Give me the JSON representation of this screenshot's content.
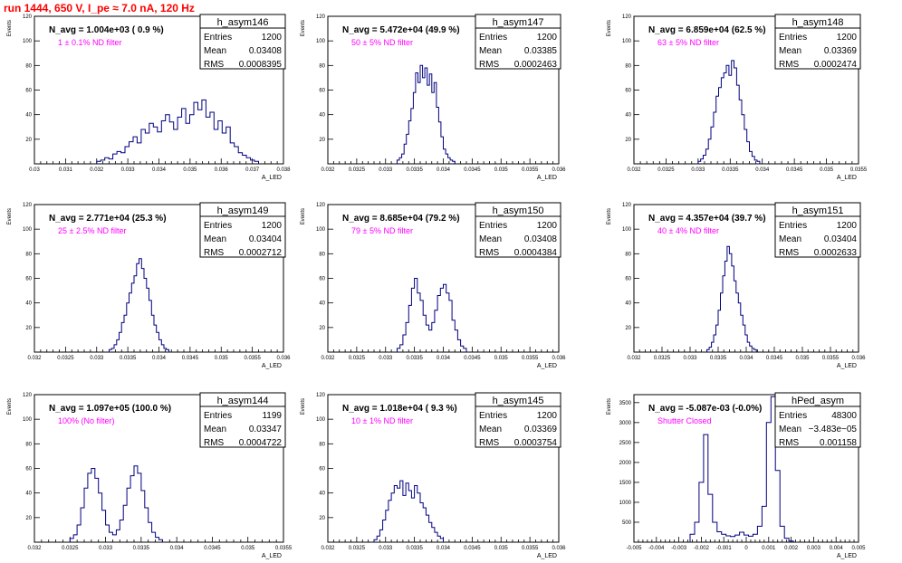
{
  "page": {
    "title": "run 1444,   650 V, I_pe ≈ 7.0 nA, 120 Hz"
  },
  "chart_data": [
    {
      "type": "bar",
      "title": "h_asym146",
      "entries": "1200",
      "mean": "0.03408",
      "rms": "0.0008395",
      "navg_label": "N_avg = 1.004e+03 ( 0.9 %)",
      "filter_label": "1 ± 0.1% ND filter",
      "xlabel": "A_LED",
      "ylabel": "Events",
      "xlim": [
        0.03,
        0.038
      ],
      "ylim": [
        0,
        120
      ],
      "xticks": [
        "0.03",
        "0.031",
        "0.032",
        "0.033",
        "0.034",
        "0.035",
        "0.036",
        "0.037",
        "0.038"
      ],
      "yticks": [
        "20",
        "40",
        "60",
        "80",
        "100",
        "120"
      ],
      "bins": {
        "x0": 0.032,
        "width": 0.00013,
        "values": [
          2,
          3,
          5,
          4,
          8,
          10,
          9,
          14,
          18,
          22,
          17,
          28,
          25,
          33,
          30,
          26,
          35,
          40,
          34,
          28,
          38,
          45,
          33,
          40,
          50,
          44,
          52,
          38,
          42,
          28,
          35,
          25,
          30,
          17,
          14,
          9,
          7,
          5,
          3,
          2
        ]
      }
    },
    {
      "type": "bar",
      "title": "h_asym147",
      "entries": "1200",
      "mean": "0.03385",
      "rms": "0.0002463",
      "navg_label": "N_avg = 5.472e+04 (49.9 %)",
      "filter_label": "50 ± 5% ND filter",
      "xlabel": "A_LED",
      "ylabel": "Events",
      "xlim": [
        0.032,
        0.036
      ],
      "ylim": [
        0,
        120
      ],
      "xticks": [
        "0.032",
        "0.0325",
        "0.033",
        "0.0335",
        "0.034",
        "0.0345",
        "0.035",
        "0.0355",
        "0.036"
      ],
      "yticks": [
        "20",
        "40",
        "60",
        "80",
        "100",
        "120"
      ],
      "bins": {
        "x0": 0.0332,
        "width": 4e-05,
        "values": [
          3,
          5,
          8,
          16,
          24,
          35,
          45,
          58,
          74,
          66,
          80,
          70,
          78,
          64,
          73,
          58,
          66,
          46,
          34,
          22,
          12,
          8,
          5,
          3,
          2
        ]
      }
    },
    {
      "type": "bar",
      "title": "h_asym148",
      "entries": "1200",
      "mean": "0.03369",
      "rms": "0.0002474",
      "navg_label": "N_avg = 6.859e+04 (62.5 %)",
      "filter_label": "63 ± 5% ND filter",
      "xlabel": "A_LED",
      "ylabel": "Events",
      "xlim": [
        0.032,
        0.0355
      ],
      "ylim": [
        0,
        120
      ],
      "xticks": [
        "0.032",
        "0.0325",
        "0.033",
        "0.0335",
        "0.034",
        "0.0345",
        "0.035",
        "0.0355"
      ],
      "yticks": [
        "20",
        "40",
        "60",
        "80",
        "100",
        "120"
      ],
      "bins": {
        "x0": 0.033,
        "width": 4e-05,
        "values": [
          2,
          4,
          7,
          12,
          20,
          30,
          42,
          55,
          62,
          70,
          74,
          80,
          72,
          84,
          78,
          64,
          52,
          40,
          28,
          18,
          10,
          6,
          3,
          2
        ]
      }
    },
    {
      "type": "bar",
      "title": "h_asym149",
      "entries": "1200",
      "mean": "0.03404",
      "rms": "0.0002712",
      "navg_label": "N_avg = 2.771e+04 (25.3 %)",
      "filter_label": "25 ± 2.5% ND filter",
      "xlabel": "A_LED",
      "ylabel": "Events",
      "xlim": [
        0.032,
        0.036
      ],
      "ylim": [
        0,
        120
      ],
      "xticks": [
        "0.032",
        "0.0325",
        "0.033",
        "0.0335",
        "0.034",
        "0.0345",
        "0.035",
        "0.0355",
        "0.036"
      ],
      "yticks": [
        "20",
        "40",
        "60",
        "80",
        "100",
        "120"
      ],
      "bins": {
        "x0": 0.0332,
        "width": 4e-05,
        "values": [
          2,
          3,
          6,
          10,
          16,
          24,
          30,
          40,
          48,
          56,
          62,
          72,
          76,
          68,
          60,
          52,
          42,
          30,
          22,
          16,
          10,
          6,
          3,
          2
        ]
      }
    },
    {
      "type": "bar",
      "title": "h_asym150",
      "entries": "1200",
      "mean": "0.03408",
      "rms": "0.0004384",
      "navg_label": "N_avg = 8.685e+04 (79.2 %)",
      "filter_label": "79 ± 5% ND filter",
      "xlabel": "A_LED",
      "ylabel": "Events",
      "xlim": [
        0.032,
        0.036
      ],
      "ylim": [
        0,
        120
      ],
      "xticks": [
        "0.032",
        "0.0325",
        "0.033",
        "0.0335",
        "0.034",
        "0.0345",
        "0.035",
        "0.0355",
        "0.036"
      ],
      "yticks": [
        "20",
        "40",
        "60",
        "80",
        "100",
        "120"
      ],
      "bins": {
        "x0": 0.0332,
        "width": 5e-05,
        "values": [
          3,
          6,
          14,
          24,
          38,
          52,
          60,
          48,
          42,
          30,
          22,
          18,
          24,
          34,
          46,
          52,
          55,
          48,
          42,
          26,
          18,
          10,
          5,
          3
        ]
      }
    },
    {
      "type": "bar",
      "title": "h_asym151",
      "entries": "1200",
      "mean": "0.03404",
      "rms": "0.0002633",
      "navg_label": "N_avg = 4.357e+04 (39.7 %)",
      "filter_label": "40 ± 4% ND filter",
      "xlabel": "A_LED",
      "ylabel": "Events",
      "xlim": [
        0.032,
        0.036
      ],
      "ylim": [
        0,
        120
      ],
      "xticks": [
        "0.032",
        "0.0325",
        "0.033",
        "0.0335",
        "0.034",
        "0.0345",
        "0.035",
        "0.0355",
        "0.036"
      ],
      "yticks": [
        "20",
        "40",
        "60",
        "80",
        "100",
        "120"
      ],
      "bins": {
        "x0": 0.0333,
        "width": 4e-05,
        "values": [
          2,
          4,
          8,
          14,
          22,
          34,
          48,
          62,
          74,
          86,
          80,
          70,
          58,
          48,
          40,
          30,
          22,
          14,
          8,
          5,
          3,
          2
        ]
      }
    },
    {
      "type": "bar",
      "title": "h_asym144",
      "entries": "1199",
      "mean": "0.03347",
      "rms": "0.0004722",
      "navg_label": "N_avg = 1.097e+05 (100.0 %)",
      "filter_label": "100% (No filter)",
      "xlabel": "A_LED",
      "ylabel": "Events",
      "xlim": [
        0.032,
        0.0355
      ],
      "ylim": [
        0,
        120
      ],
      "xticks": [
        "0.032",
        "0.0325",
        "0.033",
        "0.0335",
        "0.034",
        "0.0345",
        "0.035",
        "0.0355"
      ],
      "yticks": [
        "20",
        "40",
        "60",
        "80",
        "100",
        "120"
      ],
      "bins": {
        "x0": 0.0325,
        "width": 5e-05,
        "values": [
          3,
          6,
          14,
          28,
          44,
          56,
          60,
          52,
          40,
          26,
          14,
          8,
          6,
          10,
          18,
          30,
          44,
          54,
          62,
          56,
          42,
          28,
          16,
          8,
          4,
          2
        ]
      }
    },
    {
      "type": "bar",
      "title": "h_asym145",
      "entries": "1200",
      "mean": "0.03369",
      "rms": "0.0003754",
      "navg_label": "N_avg = 1.018e+04 ( 9.3 %)",
      "filter_label": "10 ± 1% ND filter",
      "xlabel": "A_LED",
      "ylabel": "Events",
      "xlim": [
        0.032,
        0.036
      ],
      "ylim": [
        0,
        120
      ],
      "xticks": [
        "0.032",
        "0.0325",
        "0.033",
        "0.0335",
        "0.034",
        "0.0345",
        "0.035",
        "0.0355",
        "0.036"
      ],
      "yticks": [
        "20",
        "40",
        "60",
        "80",
        "100",
        "120"
      ],
      "bins": {
        "x0": 0.0328,
        "width": 5e-05,
        "values": [
          2,
          5,
          10,
          18,
          26,
          34,
          40,
          46,
          44,
          50,
          38,
          48,
          42,
          36,
          46,
          40,
          32,
          28,
          22,
          16,
          12,
          8,
          5,
          3
        ]
      }
    },
    {
      "type": "bar",
      "title": "hPed_asym",
      "entries": "48300",
      "mean": "−3.483e−05",
      "rms": "0.001158",
      "navg_label": "N_avg = -5.087e-03 (-0.0%)",
      "filter_label": "Shutter Closed",
      "xlabel": "A_LED",
      "ylabel": "Events",
      "xlim": [
        -0.005,
        0.005
      ],
      "ylim": [
        0,
        3700
      ],
      "xticks": [
        "-0.005",
        "-0.004",
        "-0.003",
        "-0.002",
        "-0.001",
        "0",
        "0.001",
        "0.002",
        "0.003",
        "0.004",
        "0.005"
      ],
      "yticks": [
        "500",
        "1000",
        "1500",
        "2000",
        "2500",
        "3000",
        "3500"
      ],
      "bins": {
        "x0": -0.0025,
        "width": 0.0002,
        "values": [
          200,
          500,
          1500,
          2700,
          1200,
          500,
          260,
          200,
          160,
          140,
          180,
          250,
          180,
          150,
          200,
          400,
          900,
          3000,
          3650,
          1800,
          400,
          100,
          30
        ]
      }
    }
  ]
}
